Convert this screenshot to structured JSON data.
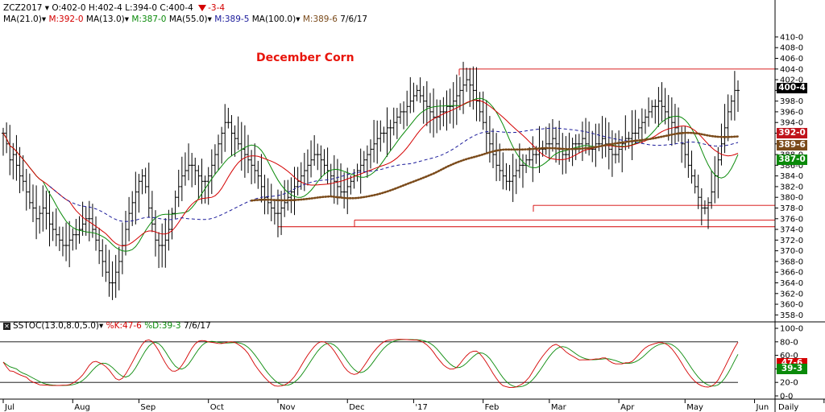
{
  "header": {
    "symbol": "ZCZ2017",
    "ohlc": "O:402-0 H:402-4 L:394-0 C:400-4",
    "change": "-3-4",
    "studies": [
      {
        "label": "MA(21.0)",
        "value": "M:392-0",
        "color": "#d40000"
      },
      {
        "label": "MA(13.0)",
        "value": "M:387-0",
        "color": "#0a8a0a"
      },
      {
        "label": "MA(55.0)",
        "value": "M:389-5",
        "color": "#1a1a9a"
      },
      {
        "label": "MA(100.0)",
        "value": "M:389-6",
        "color": "#7a4a1a"
      }
    ],
    "date": "7/6/17"
  },
  "stoch_header": {
    "label": "SSTOC(13.0,8.0,5.0)",
    "k": "%K:47-6",
    "d": "%D:39-3",
    "date": "7/6/17"
  },
  "chart_data": {
    "type": "line",
    "title": "December Corn",
    "price_axis": {
      "range": [
        357,
        413
      ],
      "ticks": [
        "358-0",
        "360-0",
        "362-0",
        "364-0",
        "366-0",
        "368-0",
        "370-0",
        "372-0",
        "374-0",
        "376-0",
        "378-0",
        "380-0",
        "382-0",
        "384-0",
        "386-0",
        "388-0",
        "390-0",
        "392-0",
        "394-0",
        "396-0",
        "398-0",
        "400-0",
        "402-0",
        "404-0",
        "406-0",
        "408-0",
        "410-0"
      ]
    },
    "price_tags": [
      {
        "text": "400-4",
        "value": 400.5,
        "color": "#000000"
      },
      {
        "text": "392-0",
        "value": 392.0,
        "color": "#c0141c"
      },
      {
        "text": "389-6",
        "value": 389.75,
        "color": "#7a4a1a"
      },
      {
        "text": "387-0",
        "value": 387.0,
        "color": "#0a8a0a"
      }
    ],
    "x_labels": [
      "Jul",
      "Aug",
      "Sep",
      "Oct",
      "Nov",
      "Dec",
      "'17",
      "Feb",
      "Mar",
      "Apr",
      "May",
      "Jun",
      "Jul",
      "Daily"
    ],
    "x_label_index": [
      0,
      21,
      41,
      62,
      83,
      104,
      124,
      145,
      165,
      186,
      206,
      227,
      248
    ],
    "closes": [
      392,
      390,
      387,
      388,
      386,
      384,
      383,
      381,
      379,
      378,
      376,
      377,
      378,
      377,
      375,
      374,
      373,
      372,
      371,
      371,
      372,
      373,
      373,
      374,
      375,
      376,
      376,
      374,
      372,
      370,
      368,
      366,
      364,
      364,
      366,
      368,
      371,
      374,
      377,
      379,
      381,
      383,
      384,
      382,
      378,
      375,
      372,
      371,
      371,
      372,
      374,
      377,
      380,
      382,
      384,
      385,
      386,
      386,
      385,
      384,
      383,
      383,
      384,
      386,
      388,
      390,
      392,
      394,
      394,
      392,
      391,
      390,
      389,
      388,
      387,
      386,
      385,
      384,
      382,
      380,
      379,
      378,
      377,
      377,
      378,
      379,
      380,
      381,
      382,
      383,
      384,
      385,
      386,
      387,
      388,
      388,
      387,
      386,
      385,
      384,
      383,
      382,
      381,
      381,
      382,
      383,
      384,
      385,
      386,
      387,
      388,
      389,
      390,
      391,
      392,
      392,
      393,
      393,
      394,
      395,
      396,
      396,
      397,
      398,
      399,
      400,
      399,
      398,
      397,
      396,
      395,
      395,
      396,
      396,
      397,
      397,
      398,
      399,
      400,
      401,
      402,
      401,
      400,
      398,
      396,
      394,
      392,
      390,
      388,
      386,
      385,
      384,
      383,
      383,
      384,
      385,
      386,
      386,
      387,
      387,
      388,
      388,
      389,
      389,
      390,
      390,
      391,
      390,
      389,
      388,
      388,
      389,
      390,
      390,
      390,
      391,
      390,
      389,
      389,
      390,
      390,
      391,
      390,
      389,
      388,
      388,
      389,
      390,
      391,
      391,
      392,
      392,
      393,
      394,
      395,
      396,
      397,
      397,
      398,
      397,
      396,
      395,
      394,
      393,
      392,
      390,
      388,
      386,
      384,
      382,
      380,
      378,
      378,
      379,
      381,
      384,
      387,
      390,
      393,
      396,
      398,
      400,
      400
    ],
    "series": [
      {
        "name": "MA(13.0)",
        "color": "#0a8a0a",
        "style": "solid",
        "period": 13
      },
      {
        "name": "MA(21.0)",
        "color": "#d40000",
        "style": "solid",
        "period": 21
      },
      {
        "name": "MA(55.0)",
        "color": "#1a1a9a",
        "style": "dashed",
        "period": 55
      },
      {
        "name": "MA(100.0)",
        "color": "#7a4a1a",
        "style": "dotted",
        "period": 100
      }
    ],
    "horizontal_levels": [
      404,
      378.5,
      375.75,
      374.5
    ],
    "stochastic": {
      "range": [
        0,
        100
      ],
      "ticks": [
        "0-0",
        "20-0",
        "40-0",
        "60-0",
        "80-0",
        "100-0"
      ],
      "bands": [
        80,
        20
      ],
      "k_label": "%K",
      "k_color": "#d40000",
      "d_label": "%D",
      "d_color": "#0a8a0a",
      "tags": [
        {
          "text": "47-6",
          "value": 47.75,
          "color": "#d40000"
        },
        {
          "text": "39-3",
          "value": 39.4,
          "color": "#0a8a0a"
        }
      ]
    }
  }
}
